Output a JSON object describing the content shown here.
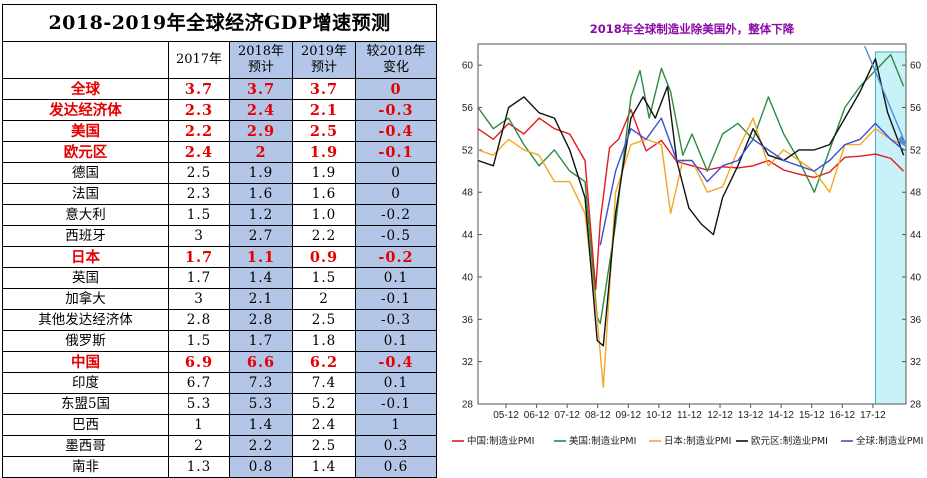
{
  "table": {
    "title": "2018-2019年全球经济GDP增速预测",
    "headers": [
      "",
      "2017年",
      "2018年\n预计",
      "2019年\n预计",
      "较2018年\n变化"
    ],
    "rows": [
      {
        "name": "全球",
        "v2017": "3.7",
        "v2018": "3.7",
        "v2019": "3.7",
        "change": "0",
        "highlight": true
      },
      {
        "name": "发达经济体",
        "v2017": "2.3",
        "v2018": "2.4",
        "v2019": "2.1",
        "change": "-0.3",
        "highlight": true
      },
      {
        "name": "美国",
        "v2017": "2.2",
        "v2018": "2.9",
        "v2019": "2.5",
        "change": "-0.4",
        "highlight": true
      },
      {
        "name": "欧元区",
        "v2017": "2.4",
        "v2018": "2",
        "v2019": "1.9",
        "change": "-0.1",
        "highlight": true
      },
      {
        "name": "德国",
        "v2017": "2.5",
        "v2018": "1.9",
        "v2019": "1.9",
        "change": "0",
        "highlight": false
      },
      {
        "name": "法国",
        "v2017": "2.3",
        "v2018": "1.6",
        "v2019": "1.6",
        "change": "0",
        "highlight": false
      },
      {
        "name": "意大利",
        "v2017": "1.5",
        "v2018": "1.2",
        "v2019": "1.0",
        "change": "-0.2",
        "highlight": false
      },
      {
        "name": "西班牙",
        "v2017": "3",
        "v2018": "2.7",
        "v2019": "2.2",
        "change": "-0.5",
        "highlight": false
      },
      {
        "name": "日本",
        "v2017": "1.7",
        "v2018": "1.1",
        "v2019": "0.9",
        "change": "-0.2",
        "highlight": true
      },
      {
        "name": "英国",
        "v2017": "1.7",
        "v2018": "1.4",
        "v2019": "1.5",
        "change": "0.1",
        "highlight": false
      },
      {
        "name": "加拿大",
        "v2017": "3",
        "v2018": "2.1",
        "v2019": "2",
        "change": "-0.1",
        "highlight": false
      },
      {
        "name": "其他发达经济体",
        "v2017": "2.8",
        "v2018": "2.8",
        "v2019": "2.5",
        "change": "-0.3",
        "highlight": false
      },
      {
        "name": "俄罗斯",
        "v2017": "1.5",
        "v2018": "1.7",
        "v2019": "1.8",
        "change": "0.1",
        "highlight": false
      },
      {
        "name": "中国",
        "v2017": "6.9",
        "v2018": "6.6",
        "v2019": "6.2",
        "change": "-0.4",
        "highlight": true
      },
      {
        "name": "印度",
        "v2017": "6.7",
        "v2018": "7.3",
        "v2019": "7.4",
        "change": "0.1",
        "highlight": false
      },
      {
        "name": "东盟5国",
        "v2017": "5.3",
        "v2018": "5.3",
        "v2019": "5.2",
        "change": "-0.1",
        "highlight": false
      },
      {
        "name": "巴西",
        "v2017": "1",
        "v2018": "1.4",
        "v2019": "2.4",
        "change": "1",
        "highlight": false
      },
      {
        "name": "墨西哥",
        "v2017": "2",
        "v2018": "2.2",
        "v2019": "2.5",
        "change": "0.3",
        "highlight": false
      },
      {
        "name": "南非",
        "v2017": "1.3",
        "v2018": "0.8",
        "v2019": "1.4",
        "change": "0.6",
        "highlight": false
      }
    ]
  },
  "chart_data": {
    "type": "line",
    "title": "2018年全球制造业除美国外，整体下降",
    "x_range": [
      2005.0,
      2019.0
    ],
    "ylim": [
      28,
      62
    ],
    "yticks": [
      28,
      32,
      36,
      40,
      44,
      48,
      52,
      56,
      60
    ],
    "xticks": [
      "05-12",
      "06-12",
      "07-12",
      "08-12",
      "09-12",
      "10-12",
      "11-12",
      "12-12",
      "13-12",
      "14-12",
      "15-12",
      "16-12",
      "17-12"
    ],
    "shaded_region": [
      2018.0,
      2019.0
    ],
    "annotation": "downtrend arrow over 2018",
    "legend_position": "bottom",
    "colors": {
      "中国:制造业PMI": "#e31a1c",
      "美国:制造业PMI": "#2e8b3e",
      "日本:制造业PMI": "#f5a623",
      "欧元区:制造业PMI": "#111111",
      "全球:制造业PMI": "#3b4fd8",
      "shade": "#c8f2f8",
      "arrow": "#4a90d9"
    },
    "series": [
      {
        "name": "中国:制造业PMI",
        "x": [
          2005.0,
          2005.5,
          2006.0,
          2006.5,
          2007.0,
          2007.5,
          2008.0,
          2008.5,
          2008.85,
          2009.0,
          2009.3,
          2009.6,
          2010.0,
          2010.5,
          2011.0,
          2011.5,
          2012.0,
          2012.5,
          2013.0,
          2013.5,
          2014.0,
          2014.5,
          2015.0,
          2015.5,
          2016.0,
          2016.5,
          2017.0,
          2017.5,
          2018.0,
          2018.5,
          2018.92
        ],
        "y": [
          54.0,
          53.0,
          54.5,
          53.5,
          55.0,
          54.0,
          53.5,
          51.0,
          38.8,
          45.3,
          52.2,
          53.0,
          55.8,
          51.9,
          52.9,
          50.9,
          50.5,
          50.1,
          50.4,
          50.3,
          50.5,
          51.0,
          50.1,
          49.7,
          49.4,
          49.9,
          51.3,
          51.4,
          51.6,
          51.2,
          50.0
        ]
      },
      {
        "name": "美国:制造业PMI",
        "x": [
          2005.0,
          2005.5,
          2006.0,
          2006.5,
          2007.0,
          2007.5,
          2008.0,
          2008.5,
          2008.9,
          2009.0,
          2009.5,
          2010.0,
          2010.3,
          2010.6,
          2011.0,
          2011.3,
          2011.7,
          2012.0,
          2012.5,
          2013.0,
          2013.5,
          2014.0,
          2014.5,
          2015.0,
          2015.5,
          2016.0,
          2016.5,
          2017.0,
          2017.5,
          2018.0,
          2018.5,
          2018.92
        ],
        "y": [
          56.0,
          54.0,
          55.0,
          52.5,
          50.5,
          52.0,
          50.0,
          49.0,
          36.2,
          35.6,
          45.0,
          57.0,
          59.5,
          55.0,
          59.7,
          57.5,
          51.5,
          53.5,
          50.0,
          53.5,
          54.5,
          53.0,
          57.0,
          53.5,
          51.0,
          48.0,
          52.0,
          56.0,
          58.0,
          59.5,
          61.0,
          58.0
        ]
      },
      {
        "name": "日本:制造业PMI",
        "x": [
          2005.0,
          2005.5,
          2006.0,
          2006.5,
          2007.0,
          2007.5,
          2008.0,
          2008.5,
          2008.9,
          2009.1,
          2009.5,
          2010.0,
          2010.5,
          2011.0,
          2011.3,
          2011.7,
          2012.0,
          2012.5,
          2013.0,
          2013.5,
          2014.0,
          2014.5,
          2015.0,
          2015.5,
          2016.0,
          2016.5,
          2017.0,
          2017.5,
          2018.0,
          2018.5,
          2018.92
        ],
        "y": [
          52.0,
          51.5,
          53.0,
          52.0,
          51.5,
          49.0,
          49.0,
          46.0,
          36.0,
          29.6,
          48.0,
          52.5,
          53.0,
          52.5,
          46.0,
          51.0,
          51.0,
          48.0,
          48.5,
          52.0,
          55.0,
          50.5,
          52.0,
          51.0,
          50.0,
          48.0,
          52.5,
          52.5,
          54.0,
          53.0,
          52.5
        ]
      },
      {
        "name": "欧元区:制造业PMI",
        "x": [
          2005.0,
          2005.5,
          2006.0,
          2006.5,
          2007.0,
          2007.5,
          2008.0,
          2008.5,
          2008.9,
          2009.1,
          2009.5,
          2010.0,
          2010.4,
          2010.8,
          2011.2,
          2011.5,
          2011.9,
          2012.3,
          2012.7,
          2013.0,
          2013.5,
          2014.0,
          2014.5,
          2015.0,
          2015.5,
          2016.0,
          2016.5,
          2017.0,
          2017.5,
          2018.0,
          2018.4,
          2018.92
        ],
        "y": [
          51.0,
          50.5,
          56.0,
          57.0,
          55.5,
          55.0,
          52.0,
          47.5,
          34.0,
          33.5,
          46.0,
          55.0,
          57.0,
          55.0,
          58.0,
          51.0,
          46.5,
          45.0,
          44.0,
          47.5,
          50.5,
          54.0,
          51.5,
          51.0,
          52.0,
          52.0,
          52.5,
          55.0,
          57.5,
          60.6,
          55.5,
          51.5
        ]
      },
      {
        "name": "全球:制造业PMI",
        "x": [
          2009.0,
          2009.5,
          2010.0,
          2010.5,
          2011.0,
          2011.5,
          2012.0,
          2012.5,
          2013.0,
          2013.5,
          2014.0,
          2014.5,
          2015.0,
          2015.5,
          2016.0,
          2016.5,
          2017.0,
          2017.5,
          2018.0,
          2018.5,
          2018.92
        ],
        "y": [
          43.0,
          50.0,
          54.0,
          53.0,
          55.0,
          51.0,
          51.0,
          49.0,
          50.5,
          51.0,
          53.0,
          52.0,
          51.0,
          50.5,
          50.0,
          51.0,
          52.5,
          53.0,
          54.5,
          53.0,
          52.0
        ]
      }
    ]
  }
}
